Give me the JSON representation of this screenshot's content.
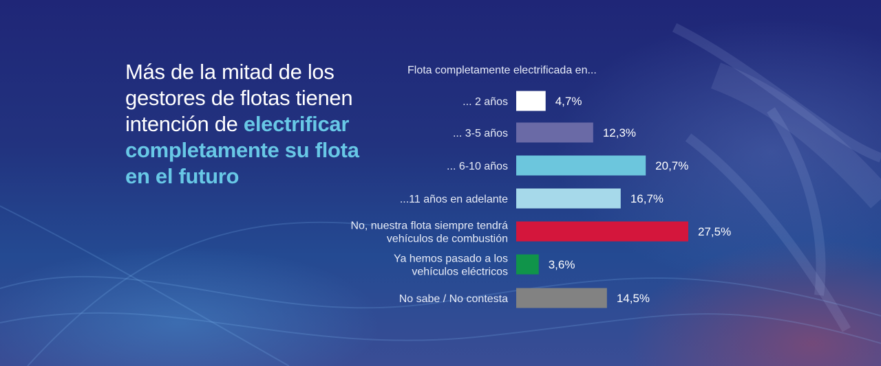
{
  "headline": {
    "line1": "Más de la mitad de los",
    "line2": "gestores de flotas tienen",
    "line3_plain": "intención de ",
    "line3_accent": "electrificar",
    "line4_accent": "completamente su flota",
    "line5_accent": "en el futuro"
  },
  "colors": {
    "accent": "#68c8e6",
    "bars": [
      "#ffffff",
      "#6a6aa6",
      "#6cc6dd",
      "#a6d9ea",
      "#d4163c",
      "#10944a",
      "#828282"
    ]
  },
  "chart_data": {
    "type": "bar",
    "orientation": "horizontal",
    "title": "Flota completamente electrificada en...",
    "categories": [
      [
        "... 2 años"
      ],
      [
        "... 3-5 años"
      ],
      [
        "... 6-10 años"
      ],
      [
        "...11 años en adelante"
      ],
      [
        "No, nuestra flota siempre tendrá",
        "vehículos de combustión"
      ],
      [
        "Ya hemos pasado a los",
        "vehículos eléctricos"
      ],
      [
        "No sabe / No contesta"
      ]
    ],
    "values": [
      4.7,
      12.3,
      20.7,
      16.7,
      27.5,
      3.6,
      14.5
    ],
    "value_labels": [
      "4,7%",
      "12,3%",
      "20,7%",
      "16,7%",
      "27,5%",
      "3,6%",
      "14,5%"
    ],
    "unit": "%",
    "xlim": [
      0,
      27.5
    ]
  }
}
